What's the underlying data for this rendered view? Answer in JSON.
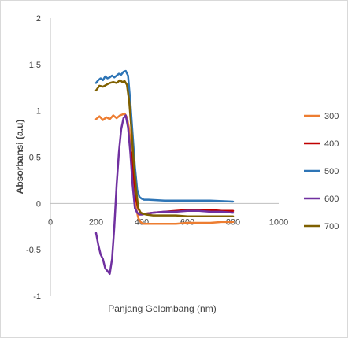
{
  "chart_data": {
    "type": "line",
    "title": "",
    "xlabel": "Panjang Gelombang (nm)",
    "ylabel": "Absorbansi (a.u)",
    "xlim": [
      0,
      1000
    ],
    "ylim": [
      -1,
      2
    ],
    "xticks": [
      0,
      200,
      400,
      600,
      800,
      1000
    ],
    "yticks": [
      2,
      1.5,
      1,
      0.5,
      0,
      -0.5,
      -1
    ],
    "xtick_labels": [
      "0",
      "200",
      "400",
      "600",
      "800",
      "1000"
    ],
    "ytick_labels": [
      "2",
      "1.5",
      "1",
      "0.5",
      "0",
      "-0.5",
      "-1"
    ],
    "grid": false,
    "legend_position": "right",
    "series": [
      {
        "name": "300",
        "color": "#ed7d31",
        "x": [
          200,
          215,
          230,
          245,
          260,
          275,
          290,
          305,
          315,
          325,
          335,
          345,
          355,
          365,
          375,
          385,
          395,
          405,
          420,
          450,
          500,
          550,
          600,
          650,
          700,
          750,
          800
        ],
        "y": [
          0.91,
          0.94,
          0.9,
          0.93,
          0.91,
          0.95,
          0.92,
          0.95,
          0.96,
          0.97,
          0.93,
          0.8,
          0.55,
          0.25,
          -0.05,
          -0.16,
          -0.2,
          -0.22,
          -0.22,
          -0.22,
          -0.22,
          -0.22,
          -0.21,
          -0.21,
          -0.21,
          -0.2,
          -0.2
        ]
      },
      {
        "name": "400",
        "color": "#c00000",
        "x": [
          355,
          365,
          375,
          385,
          395,
          405,
          420,
          450,
          500,
          550,
          600,
          650,
          700,
          750,
          800
        ],
        "y": [
          0.55,
          0.3,
          0.05,
          -0.06,
          -0.1,
          -0.11,
          -0.11,
          -0.1,
          -0.09,
          -0.08,
          -0.07,
          -0.07,
          -0.07,
          -0.08,
          -0.08
        ]
      },
      {
        "name": "500",
        "color": "#2e75b6",
        "x": [
          200,
          210,
          220,
          230,
          240,
          250,
          260,
          270,
          280,
          290,
          300,
          310,
          320,
          330,
          340,
          350,
          360,
          370,
          380,
          390,
          400,
          410,
          430,
          500,
          600,
          700,
          800
        ],
        "y": [
          1.3,
          1.33,
          1.35,
          1.33,
          1.37,
          1.35,
          1.36,
          1.38,
          1.36,
          1.38,
          1.4,
          1.39,
          1.42,
          1.43,
          1.38,
          1.1,
          0.75,
          0.4,
          0.15,
          0.07,
          0.05,
          0.04,
          0.04,
          0.03,
          0.03,
          0.03,
          0.02
        ]
      },
      {
        "name": "600",
        "color": "#7030a0",
        "x": [
          200,
          210,
          220,
          230,
          240,
          250,
          260,
          270,
          280,
          290,
          300,
          310,
          320,
          330,
          340,
          350,
          360,
          370,
          380,
          390,
          400,
          420,
          450,
          500,
          550,
          600,
          650,
          700,
          750,
          800
        ],
        "y": [
          -0.32,
          -0.45,
          -0.55,
          -0.6,
          -0.7,
          -0.73,
          -0.76,
          -0.6,
          -0.25,
          0.2,
          0.55,
          0.8,
          0.92,
          0.95,
          0.82,
          0.55,
          0.2,
          -0.05,
          -0.1,
          -0.12,
          -0.12,
          -0.11,
          -0.1,
          -0.09,
          -0.09,
          -0.08,
          -0.08,
          -0.09,
          -0.09,
          -0.1
        ]
      },
      {
        "name": "700",
        "color": "#7f6000",
        "x": [
          200,
          215,
          230,
          245,
          260,
          275,
          290,
          305,
          315,
          325,
          335,
          345,
          355,
          365,
          375,
          385,
          395,
          405,
          420,
          450,
          500,
          550,
          600,
          650,
          700,
          750,
          800
        ],
        "y": [
          1.22,
          1.27,
          1.26,
          1.28,
          1.3,
          1.31,
          1.3,
          1.33,
          1.31,
          1.32,
          1.28,
          1.1,
          0.8,
          0.45,
          0.15,
          -0.05,
          -0.1,
          -0.11,
          -0.12,
          -0.13,
          -0.13,
          -0.13,
          -0.14,
          -0.14,
          -0.14,
          -0.14,
          -0.14
        ]
      }
    ]
  }
}
